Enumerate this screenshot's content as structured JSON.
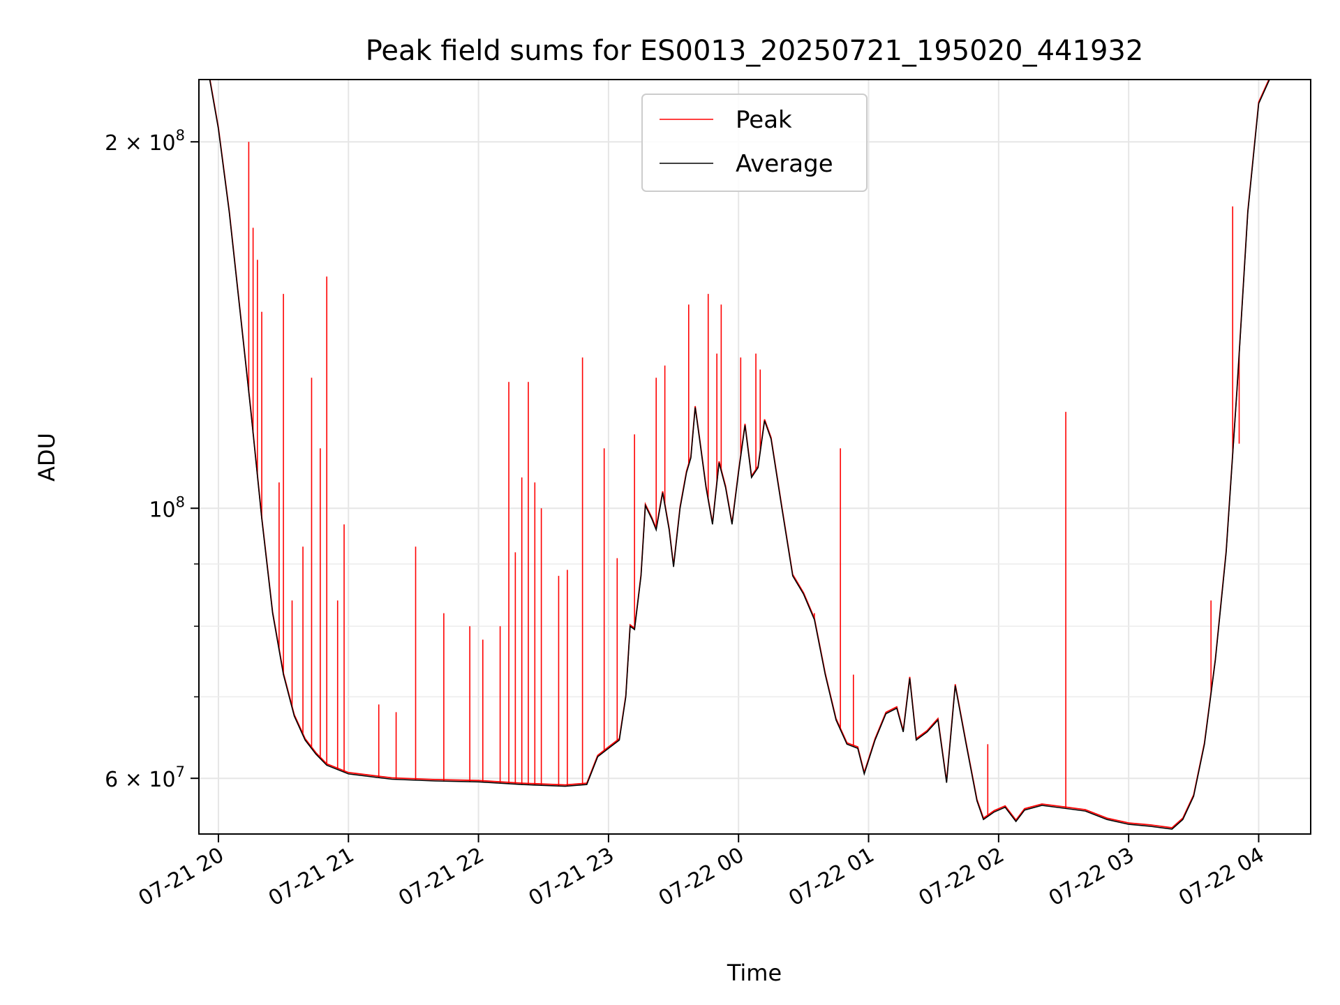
{
  "chart_data": {
    "type": "line",
    "title": "Peak field sums for ES0013_20250721_195020_441932",
    "xlabel": "Time",
    "ylabel": "ADU",
    "yscale": "log",
    "xlim": [
      "2025-07-21 19:51",
      "2025-07-22 04:24"
    ],
    "ylim": [
      54000000,
      225000000
    ],
    "grid": true,
    "legend_position": "top-center",
    "x_ticks": [
      {
        "value": "2025-07-21 20:00",
        "label": "07-21 20"
      },
      {
        "value": "2025-07-21 21:00",
        "label": "07-21 21"
      },
      {
        "value": "2025-07-21 22:00",
        "label": "07-21 22"
      },
      {
        "value": "2025-07-21 23:00",
        "label": "07-21 23"
      },
      {
        "value": "2025-07-22 00:00",
        "label": "07-22 00"
      },
      {
        "value": "2025-07-22 01:00",
        "label": "07-22 01"
      },
      {
        "value": "2025-07-22 02:00",
        "label": "07-22 02"
      },
      {
        "value": "2025-07-22 03:00",
        "label": "07-22 03"
      },
      {
        "value": "2025-07-22 04:00",
        "label": "07-22 04"
      }
    ],
    "y_ticks": [
      {
        "value": 60000000,
        "base": "6 × 10",
        "exp": "7"
      },
      {
        "value": 100000000,
        "base": "10",
        "exp": "8"
      },
      {
        "value": 200000000,
        "base": "2 × 10",
        "exp": "8"
      }
    ],
    "y_minor_ticks": [
      70000000,
      80000000,
      90000000
    ],
    "series": [
      {
        "name": "Average",
        "color": "#000000",
        "points": [
          [
            "2025-07-21 19:51",
            225000000
          ],
          [
            "2025-07-21 19:56",
            225000000
          ],
          [
            "2025-07-21 20:00",
            205000000
          ],
          [
            "2025-07-21 20:05",
            175000000
          ],
          [
            "2025-07-21 20:10",
            145000000
          ],
          [
            "2025-07-21 20:15",
            120000000
          ],
          [
            "2025-07-21 20:20",
            98000000
          ],
          [
            "2025-07-21 20:25",
            82000000
          ],
          [
            "2025-07-21 20:30",
            73000000
          ],
          [
            "2025-07-21 20:35",
            67500000
          ],
          [
            "2025-07-21 20:40",
            64500000
          ],
          [
            "2025-07-21 20:45",
            62800000
          ],
          [
            "2025-07-21 20:50",
            61500000
          ],
          [
            "2025-07-21 21:00",
            60500000
          ],
          [
            "2025-07-21 21:20",
            59900000
          ],
          [
            "2025-07-21 21:40",
            59700000
          ],
          [
            "2025-07-21 22:00",
            59600000
          ],
          [
            "2025-07-21 22:20",
            59300000
          ],
          [
            "2025-07-21 22:40",
            59100000
          ],
          [
            "2025-07-21 22:50",
            59300000
          ],
          [
            "2025-07-21 22:55",
            62500000
          ],
          [
            "2025-07-21 23:00",
            63500000
          ],
          [
            "2025-07-21 23:05",
            64500000
          ],
          [
            "2025-07-21 23:08",
            70000000
          ],
          [
            "2025-07-21 23:10",
            80000000
          ],
          [
            "2025-07-21 23:12",
            79500000
          ],
          [
            "2025-07-21 23:15",
            88000000
          ],
          [
            "2025-07-21 23:17",
            100500000
          ],
          [
            "2025-07-21 23:20",
            98000000
          ],
          [
            "2025-07-21 23:22",
            96000000
          ],
          [
            "2025-07-21 23:25",
            103000000
          ],
          [
            "2025-07-21 23:28",
            96000000
          ],
          [
            "2025-07-21 23:30",
            89500000
          ],
          [
            "2025-07-21 23:33",
            100000000
          ],
          [
            "2025-07-21 23:36",
            107000000
          ],
          [
            "2025-07-21 23:38",
            110000000
          ],
          [
            "2025-07-21 23:40",
            121000000
          ],
          [
            "2025-07-21 23:42",
            114000000
          ],
          [
            "2025-07-21 23:45",
            104000000
          ],
          [
            "2025-07-21 23:48",
            97000000
          ],
          [
            "2025-07-21 23:51",
            109000000
          ],
          [
            "2025-07-21 23:54",
            104000000
          ],
          [
            "2025-07-21 23:57",
            97000000
          ],
          [
            "2025-07-22 00:00",
            107000000
          ],
          [
            "2025-07-22 00:03",
            117000000
          ],
          [
            "2025-07-22 00:06",
            106000000
          ],
          [
            "2025-07-22 00:09",
            108000000
          ],
          [
            "2025-07-22 00:12",
            118000000
          ],
          [
            "2025-07-22 00:15",
            114000000
          ],
          [
            "2025-07-22 00:20",
            100000000
          ],
          [
            "2025-07-22 00:25",
            88000000
          ],
          [
            "2025-07-22 00:30",
            85000000
          ],
          [
            "2025-07-22 00:35",
            81000000
          ],
          [
            "2025-07-22 00:40",
            73000000
          ],
          [
            "2025-07-22 00:45",
            67000000
          ],
          [
            "2025-07-22 00:50",
            64000000
          ],
          [
            "2025-07-22 00:55",
            63500000
          ],
          [
            "2025-07-22 00:58",
            60500000
          ],
          [
            "2025-07-22 01:03",
            64500000
          ],
          [
            "2025-07-22 01:08",
            67800000
          ],
          [
            "2025-07-22 01:13",
            68500000
          ],
          [
            "2025-07-22 01:16",
            65500000
          ],
          [
            "2025-07-22 01:19",
            72500000
          ],
          [
            "2025-07-22 01:22",
            64500000
          ],
          [
            "2025-07-22 01:27",
            65500000
          ],
          [
            "2025-07-22 01:32",
            67000000
          ],
          [
            "2025-07-22 01:36",
            59500000
          ],
          [
            "2025-07-22 01:40",
            71500000
          ],
          [
            "2025-07-22 01:45",
            64000000
          ],
          [
            "2025-07-22 01:50",
            57500000
          ],
          [
            "2025-07-22 01:53",
            55500000
          ],
          [
            "2025-07-22 01:58",
            56300000
          ],
          [
            "2025-07-22 02:03",
            56800000
          ],
          [
            "2025-07-22 02:08",
            55300000
          ],
          [
            "2025-07-22 02:12",
            56500000
          ],
          [
            "2025-07-22 02:20",
            57000000
          ],
          [
            "2025-07-22 02:30",
            56700000
          ],
          [
            "2025-07-22 02:40",
            56400000
          ],
          [
            "2025-07-22 02:50",
            55500000
          ],
          [
            "2025-07-22 03:00",
            55000000
          ],
          [
            "2025-07-22 03:10",
            54800000
          ],
          [
            "2025-07-22 03:20",
            54500000
          ],
          [
            "2025-07-22 03:25",
            55500000
          ],
          [
            "2025-07-22 03:30",
            58000000
          ],
          [
            "2025-07-22 03:35",
            64000000
          ],
          [
            "2025-07-22 03:40",
            75000000
          ],
          [
            "2025-07-22 03:45",
            92000000
          ],
          [
            "2025-07-22 03:50",
            125000000
          ],
          [
            "2025-07-22 03:55",
            175000000
          ],
          [
            "2025-07-22 04:00",
            215000000
          ],
          [
            "2025-07-22 04:05",
            225000000
          ],
          [
            "2025-07-22 04:24",
            225000000
          ]
        ]
      },
      {
        "name": "Peak",
        "color": "#ff0000",
        "spikes": [
          [
            "2025-07-21 20:14",
            200000000
          ],
          [
            "2025-07-21 20:16",
            170000000
          ],
          [
            "2025-07-21 20:18",
            160000000
          ],
          [
            "2025-07-21 20:20",
            145000000
          ],
          [
            "2025-07-21 20:28",
            105000000
          ],
          [
            "2025-07-21 20:30",
            150000000
          ],
          [
            "2025-07-21 20:34",
            84000000
          ],
          [
            "2025-07-21 20:39",
            93000000
          ],
          [
            "2025-07-21 20:43",
            128000000
          ],
          [
            "2025-07-21 20:47",
            112000000
          ],
          [
            "2025-07-21 20:50",
            155000000
          ],
          [
            "2025-07-21 20:55",
            84000000
          ],
          [
            "2025-07-21 20:58",
            97000000
          ],
          [
            "2025-07-21 21:14",
            69000000
          ],
          [
            "2025-07-21 21:22",
            68000000
          ],
          [
            "2025-07-21 21:31",
            93000000
          ],
          [
            "2025-07-21 21:44",
            82000000
          ],
          [
            "2025-07-21 21:56",
            80000000
          ],
          [
            "2025-07-21 22:02",
            78000000
          ],
          [
            "2025-07-21 22:10",
            80000000
          ],
          [
            "2025-07-21 22:14",
            127000000
          ],
          [
            "2025-07-21 22:17",
            92000000
          ],
          [
            "2025-07-21 22:20",
            106000000
          ],
          [
            "2025-07-21 22:23",
            127000000
          ],
          [
            "2025-07-21 22:26",
            105000000
          ],
          [
            "2025-07-21 22:29",
            100000000
          ],
          [
            "2025-07-21 22:37",
            88000000
          ],
          [
            "2025-07-21 22:41",
            89000000
          ],
          [
            "2025-07-21 22:48",
            133000000
          ],
          [
            "2025-07-21 22:58",
            112000000
          ],
          [
            "2025-07-21 23:04",
            91000000
          ],
          [
            "2025-07-21 23:12",
            115000000
          ],
          [
            "2025-07-21 23:22",
            128000000
          ],
          [
            "2025-07-21 23:26",
            131000000
          ],
          [
            "2025-07-21 23:37",
            147000000
          ],
          [
            "2025-07-21 23:46",
            150000000
          ],
          [
            "2025-07-21 23:50",
            134000000
          ],
          [
            "2025-07-21 23:52",
            147000000
          ],
          [
            "2025-07-22 00:01",
            133000000
          ],
          [
            "2025-07-22 00:08",
            134000000
          ],
          [
            "2025-07-22 00:10",
            130000000
          ],
          [
            "2025-07-22 00:35",
            82000000
          ],
          [
            "2025-07-22 00:47",
            112000000
          ],
          [
            "2025-07-22 00:53",
            73000000
          ],
          [
            "2025-07-22 01:55",
            64000000
          ],
          [
            "2025-07-22 02:31",
            120000000
          ],
          [
            "2025-07-22 03:38",
            84000000
          ],
          [
            "2025-07-22 03:48",
            177000000
          ],
          [
            "2025-07-22 03:51",
            113000000
          ]
        ]
      }
    ]
  }
}
